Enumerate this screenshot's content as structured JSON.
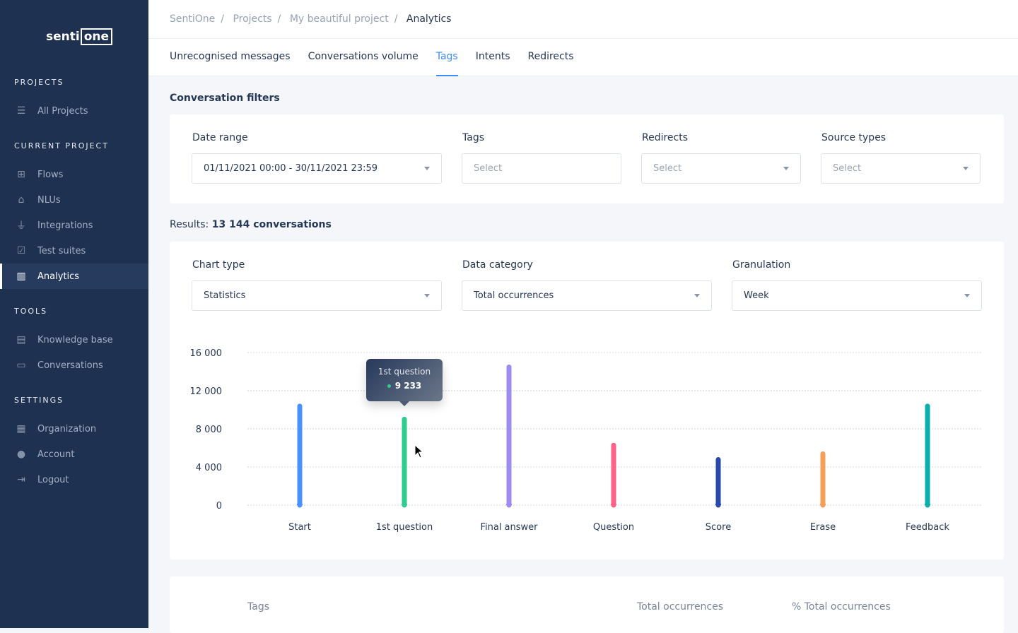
{
  "logo": {
    "text_a": "senti",
    "text_b": "one"
  },
  "sidebar": {
    "sections": [
      {
        "label": "PROJECTS"
      },
      {
        "label": "CURRENT PROJECT"
      },
      {
        "label": "TOOLS"
      },
      {
        "label": "SETTINGS"
      }
    ],
    "items": [
      {
        "label": "All Projects",
        "icon": "list-icon"
      },
      {
        "label": "Flows",
        "icon": "flows-icon"
      },
      {
        "label": "NLUs",
        "icon": "graduation-cap-icon"
      },
      {
        "label": "Integrations",
        "icon": "plug-icon"
      },
      {
        "label": "Test suites",
        "icon": "checklist-icon"
      },
      {
        "label": "Analytics",
        "icon": "bar-chart-icon",
        "active": true
      },
      {
        "label": "Knowledge base",
        "icon": "book-icon"
      },
      {
        "label": "Conversations",
        "icon": "message-icon"
      },
      {
        "label": "Organization",
        "icon": "building-icon"
      },
      {
        "label": "Account",
        "icon": "user-icon"
      },
      {
        "label": "Logout",
        "icon": "logout-icon"
      }
    ]
  },
  "breadcrumb": [
    "SentiOne",
    "Projects",
    "My beautiful project",
    "Analytics"
  ],
  "tabs": [
    {
      "label": "Unrecognised messages"
    },
    {
      "label": "Conversations volume"
    },
    {
      "label": "Tags",
      "active": true
    },
    {
      "label": "Intents"
    },
    {
      "label": "Redirects"
    }
  ],
  "filters": {
    "title": "Conversation filters",
    "date_range": {
      "label": "Date range",
      "value": "01/11/2021 00:00 - 30/11/2021 23:59"
    },
    "tags": {
      "label": "Tags",
      "placeholder": "Select"
    },
    "redirects": {
      "label": "Redirects",
      "placeholder": "Select"
    },
    "source_types": {
      "label": "Source types",
      "placeholder": "Select"
    }
  },
  "results": {
    "prefix": "Results:",
    "value": "13 144 conversations"
  },
  "controls": {
    "chart_type": {
      "label": "Chart type",
      "value": "Statistics"
    },
    "data_category": {
      "label": "Data category",
      "value": "Total occurrences"
    },
    "granulation": {
      "label": "Granulation",
      "value": "Week"
    }
  },
  "tooltip": {
    "title": "1st question",
    "value": "9 233"
  },
  "chart_data": {
    "type": "bar",
    "categories": [
      "Start",
      "1st question",
      "Final answer",
      "Question",
      "Score",
      "Erase",
      "Feedback"
    ],
    "values": [
      10600,
      9233,
      14700,
      6500,
      5000,
      5600,
      10600
    ],
    "colors": [
      "#4a90ff",
      "#2ecc8f",
      "#9b8cf2",
      "#ff6187",
      "#2a48aa",
      "#f5a05a",
      "#0aaeae"
    ],
    "ylim": [
      0,
      16000
    ],
    "yticks": [
      0,
      4000,
      8000,
      12000,
      16000
    ],
    "ytick_labels": [
      "0",
      "4 000",
      "8 000",
      "12 000",
      "16 000"
    ],
    "grid": true
  },
  "table": {
    "headers": [
      "Tags",
      "Total occurrences",
      "% Total occurrences"
    ]
  }
}
